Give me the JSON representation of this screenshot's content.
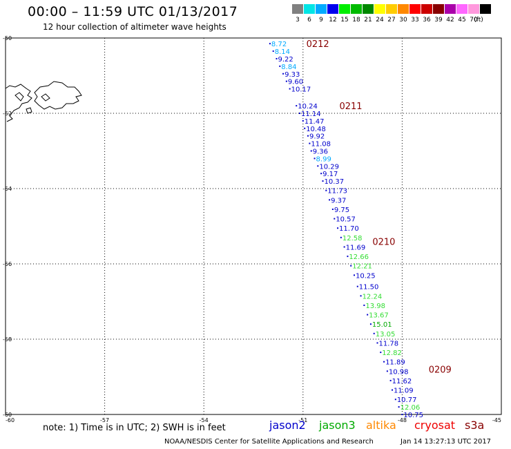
{
  "header": {
    "title": "00:00 – 11:59 UTC 01/13/2017",
    "subtitle": "12 hour collection of altimeter wave heights"
  },
  "colorbar": {
    "unit_label": "(ft)",
    "cells": [
      {
        "color": "#808080",
        "label": "3"
      },
      {
        "color": "#00e5e5",
        "label": "6"
      },
      {
        "color": "#00aaff",
        "label": "9"
      },
      {
        "color": "#0000ee",
        "label": "12"
      },
      {
        "color": "#00ee00",
        "label": "15"
      },
      {
        "color": "#00bb00",
        "label": "18"
      },
      {
        "color": "#008800",
        "label": "21"
      },
      {
        "color": "#ffff00",
        "label": "24"
      },
      {
        "color": "#ffcc00",
        "label": "27"
      },
      {
        "color": "#ff8800",
        "label": "30"
      },
      {
        "color": "#ff0000",
        "label": "33"
      },
      {
        "color": "#cc0000",
        "label": "36"
      },
      {
        "color": "#880000",
        "label": "39"
      },
      {
        "color": "#aa00aa",
        "label": "42"
      },
      {
        "color": "#ff66ff",
        "label": "45"
      },
      {
        "color": "#ff99dd",
        "label": "70"
      },
      {
        "color": "#000000",
        "label": ""
      }
    ]
  },
  "map": {
    "lon_range": [
      -60,
      -45
    ],
    "lat_range": [
      -60,
      -50
    ],
    "x_ticks": [
      "-60",
      "-57",
      "-54",
      "-51",
      "-48",
      "-45"
    ],
    "y_ticks": [
      "-50",
      "-52",
      "-54",
      "-56",
      "-58",
      "-60"
    ],
    "pass_labels": [
      {
        "text": "0212",
        "lon": -50.9,
        "lat": -50.15
      },
      {
        "text": "0211",
        "lon": -49.9,
        "lat": -51.8
      },
      {
        "text": "0210",
        "lon": -48.9,
        "lat": -55.4
      },
      {
        "text": "0209",
        "lon": -47.2,
        "lat": -58.8
      }
    ],
    "track_color": "#0000cc",
    "observations": [
      {
        "v": "8.72",
        "lon": -52.0,
        "lat": -50.15,
        "c": "#00aaff"
      },
      {
        "v": "8.14",
        "lon": -51.9,
        "lat": -50.35,
        "c": "#00aaff"
      },
      {
        "v": "9.22",
        "lon": -51.8,
        "lat": -50.55,
        "c": "#0000cc"
      },
      {
        "v": "8.84",
        "lon": -51.7,
        "lat": -50.75,
        "c": "#00aaff"
      },
      {
        "v": "9.33",
        "lon": -51.6,
        "lat": -50.95,
        "c": "#0000cc"
      },
      {
        "v": "9.60",
        "lon": -51.5,
        "lat": -51.15,
        "c": "#0000cc"
      },
      {
        "v": "10.17",
        "lon": -51.4,
        "lat": -51.35,
        "c": "#0000cc"
      },
      {
        "v": "10.24",
        "lon": -51.2,
        "lat": -51.8,
        "c": "#0000cc"
      },
      {
        "v": "11.14",
        "lon": -51.1,
        "lat": -52.0,
        "c": "#0000cc"
      },
      {
        "v": "11.47",
        "lon": -51.0,
        "lat": -52.2,
        "c": "#0000cc"
      },
      {
        "v": "10.48",
        "lon": -50.95,
        "lat": -52.4,
        "c": "#0000cc"
      },
      {
        "v": "9.92",
        "lon": -50.85,
        "lat": -52.6,
        "c": "#0000cc"
      },
      {
        "v": "11.08",
        "lon": -50.8,
        "lat": -52.8,
        "c": "#0000cc"
      },
      {
        "v": "9.36",
        "lon": -50.75,
        "lat": -53.0,
        "c": "#0000cc"
      },
      {
        "v": "8.99",
        "lon": -50.65,
        "lat": -53.2,
        "c": "#00aaff"
      },
      {
        "v": "10.29",
        "lon": -50.55,
        "lat": -53.4,
        "c": "#0000cc"
      },
      {
        "v": "9.17",
        "lon": -50.45,
        "lat": -53.6,
        "c": "#0000cc"
      },
      {
        "v": "10.37",
        "lon": -50.4,
        "lat": -53.8,
        "c": "#0000cc"
      },
      {
        "v": "11.73",
        "lon": -50.3,
        "lat": -54.05,
        "c": "#0000cc"
      },
      {
        "v": "9.37",
        "lon": -50.2,
        "lat": -54.3,
        "c": "#0000cc"
      },
      {
        "v": "9.75",
        "lon": -50.1,
        "lat": -54.55,
        "c": "#0000cc"
      },
      {
        "v": "10.57",
        "lon": -50.05,
        "lat": -54.8,
        "c": "#0000cc"
      },
      {
        "v": "11.70",
        "lon": -49.95,
        "lat": -55.05,
        "c": "#0000cc"
      },
      {
        "v": "12.58",
        "lon": -49.85,
        "lat": -55.3,
        "c": "#33dd33"
      },
      {
        "v": "11.69",
        "lon": -49.75,
        "lat": -55.55,
        "c": "#0000cc"
      },
      {
        "v": "12.66",
        "lon": -49.65,
        "lat": -55.8,
        "c": "#33dd33"
      },
      {
        "v": "12.21",
        "lon": -49.55,
        "lat": -56.05,
        "c": "#33dd33"
      },
      {
        "v": "10.25",
        "lon": -49.45,
        "lat": -56.3,
        "c": "#0000cc"
      },
      {
        "v": "11.50",
        "lon": -49.35,
        "lat": -56.6,
        "c": "#0000cc"
      },
      {
        "v": "12.24",
        "lon": -49.25,
        "lat": -56.85,
        "c": "#33dd33"
      },
      {
        "v": "13.98",
        "lon": -49.15,
        "lat": -57.1,
        "c": "#33dd33"
      },
      {
        "v": "13.67",
        "lon": -49.05,
        "lat": -57.35,
        "c": "#33dd33"
      },
      {
        "v": "15.01",
        "lon": -48.95,
        "lat": -57.6,
        "c": "#00aa00"
      },
      {
        "v": "13.05",
        "lon": -48.85,
        "lat": -57.85,
        "c": "#33dd33"
      },
      {
        "v": "11.78",
        "lon": -48.75,
        "lat": -58.1,
        "c": "#0000cc"
      },
      {
        "v": "12.82",
        "lon": -48.65,
        "lat": -58.35,
        "c": "#33dd33"
      },
      {
        "v": "11.89",
        "lon": -48.55,
        "lat": -58.6,
        "c": "#0000cc"
      },
      {
        "v": "10.98",
        "lon": -48.45,
        "lat": -58.85,
        "c": "#0000cc"
      },
      {
        "v": "11.62",
        "lon": -48.35,
        "lat": -59.1,
        "c": "#0000cc"
      },
      {
        "v": "11.09",
        "lon": -48.3,
        "lat": -59.35,
        "c": "#0000cc"
      },
      {
        "v": "10.77",
        "lon": -48.2,
        "lat": -59.6,
        "c": "#0000cc"
      },
      {
        "v": "12.06",
        "lon": -48.1,
        "lat": -59.8,
        "c": "#33dd33"
      },
      {
        "v": "10.75",
        "lon": -48.0,
        "lat": -60.0,
        "c": "#0000cc"
      }
    ]
  },
  "footer": {
    "note": "note: 1) Time is in UTC; 2) SWH is in feet",
    "legend": [
      {
        "label": "jason2",
        "color": "#0000cc"
      },
      {
        "label": "jason3",
        "color": "#00aa00"
      },
      {
        "label": "altika",
        "color": "#ff8800"
      },
      {
        "label": "cryosat",
        "color": "#ee0000"
      },
      {
        "label": "s3a",
        "color": "#880000"
      }
    ],
    "credit": "NOAA/NESDIS Center for Satellite Applications and Research",
    "timestamp": "Jan 14 13:27:13 UTC 2017"
  }
}
